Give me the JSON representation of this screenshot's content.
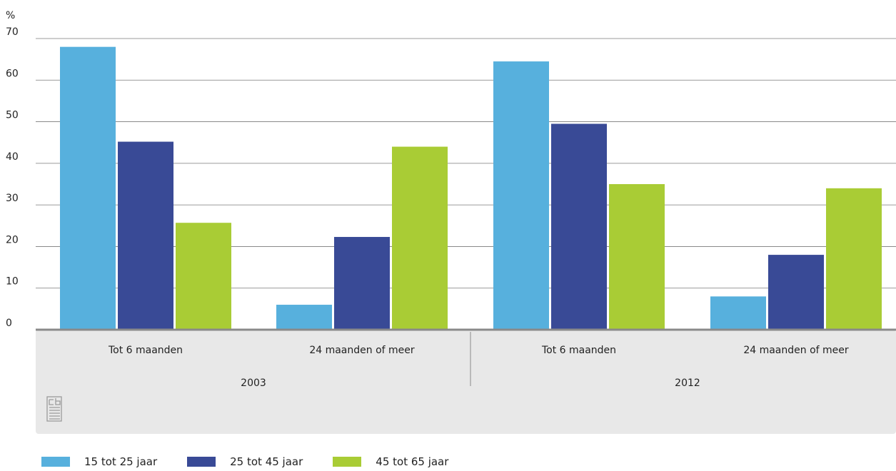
{
  "chart_data": {
    "type": "bar",
    "y_unit": "%",
    "ylim": [
      0,
      70
    ],
    "yticks": [
      "0",
      "10",
      "20",
      "30",
      "40",
      "50",
      "60",
      "70"
    ],
    "grid": true,
    "groups": [
      {
        "label": "2003",
        "categories": [
          "Tot 6 maanden",
          "24 maanden of meer"
        ]
      },
      {
        "label": "2012",
        "categories": [
          "Tot 6 maanden",
          "24 maanden of meer"
        ]
      }
    ],
    "series": [
      {
        "name": "15 tot 25 jaar",
        "color": "#57b0dd",
        "values": [
          68,
          6,
          64.5,
          8
        ]
      },
      {
        "name": "25 tot 45 jaar",
        "color": "#394a96",
        "values": [
          45.2,
          22.3,
          49.5,
          18
        ]
      },
      {
        "name": "45 tot 65 jaar",
        "color": "#a9cc35",
        "values": [
          25.7,
          44,
          35,
          34
        ]
      }
    ],
    "legend_position": "bottom-left"
  }
}
